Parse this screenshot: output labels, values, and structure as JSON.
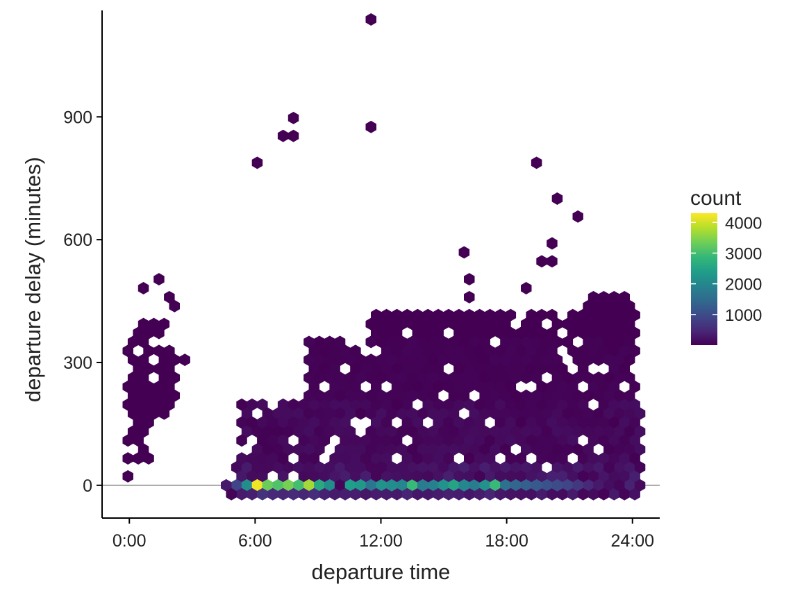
{
  "chart_data": {
    "type": "hexbin",
    "xlabel": "departure time",
    "ylabel": "departure delay (minutes)",
    "xlim": [
      -1.3,
      25.3
    ],
    "ylim": [
      -80,
      1160
    ],
    "x_ticks": [
      {
        "value": 0,
        "label": "0:00"
      },
      {
        "value": 6,
        "label": "6:00"
      },
      {
        "value": 12,
        "label": "12:00"
      },
      {
        "value": 18,
        "label": "18:00"
      },
      {
        "value": 24,
        "label": "24:00"
      }
    ],
    "y_ticks": [
      {
        "value": 0,
        "label": "0"
      },
      {
        "value": 300,
        "label": "300"
      },
      {
        "value": 600,
        "label": "600"
      },
      {
        "value": 900,
        "label": "900"
      }
    ],
    "reference_line": {
      "y": 0,
      "color": "#a6a6a6"
    },
    "legend": {
      "title": "count",
      "position": "right",
      "range": [
        1,
        4300
      ],
      "ticks": [
        {
          "value": 1000,
          "label": "1000"
        },
        {
          "value": 2000,
          "label": "2000"
        },
        {
          "value": 3000,
          "label": "3000"
        },
        {
          "value": 4000,
          "label": "4000"
        }
      ]
    },
    "colormap": [
      "#440154",
      "#482878",
      "#3e4989",
      "#31688e",
      "#26828e",
      "#1f9e89",
      "#35b779",
      "#6ece58",
      "#b5de2b",
      "#fde725"
    ],
    "outliers": [
      {
        "x": 11.3,
        "y": 1128
      },
      {
        "x": 11.55,
        "y": 868
      },
      {
        "x": 7.9,
        "y": 890
      },
      {
        "x": 7.2,
        "y": 848
      },
      {
        "x": 7.65,
        "y": 848
      },
      {
        "x": 6.3,
        "y": 790
      },
      {
        "x": 19.3,
        "y": 790
      },
      {
        "x": 20.3,
        "y": 710
      },
      {
        "x": 21.3,
        "y": 650
      },
      {
        "x": 16.05,
        "y": 570
      },
      {
        "x": 20.1,
        "y": 590
      },
      {
        "x": 19.8,
        "y": 550
      },
      {
        "x": 20.15,
        "y": 550
      },
      {
        "x": 16.3,
        "y": 510
      },
      {
        "x": 16.3,
        "y": 470
      },
      {
        "x": 19.1,
        "y": 490
      },
      {
        "x": 1.45,
        "y": 510
      },
      {
        "x": 0.7,
        "y": 490
      },
      {
        "x": 1.75,
        "y": 450
      },
      {
        "x": 1.95,
        "y": 430
      },
      {
        "x": 0.1,
        "y": 12
      }
    ],
    "regions": [
      {
        "x0": -0.2,
        "x1": 1.1,
        "y0": 70,
        "y1": 350,
        "counts": [
          1,
          3
        ]
      },
      {
        "x0": 0.3,
        "x1": 1.8,
        "y0": 380,
        "y1": 400,
        "counts": [
          1,
          2
        ]
      },
      {
        "x0": 1.0,
        "x1": 2.2,
        "y0": 160,
        "y1": 330,
        "counts": [
          1,
          2
        ]
      },
      {
        "x0": 1.7,
        "x1": 2.8,
        "y0": 280,
        "y1": 310,
        "counts": [
          1,
          2
        ]
      },
      {
        "x0": 5.0,
        "x1": 24.3,
        "y0": -30,
        "y1": 40,
        "counts": [
          30,
          400
        ]
      },
      {
        "x0": 5.3,
        "x1": 24.4,
        "y0": 0,
        "y1": 200,
        "counts": [
          5,
          160
        ]
      },
      {
        "x0": 8.5,
        "x1": 24.3,
        "y0": 200,
        "y1": 340,
        "counts": [
          2,
          40
        ]
      },
      {
        "x0": 11.5,
        "x1": 24.1,
        "y0": 340,
        "y1": 410,
        "counts": [
          1,
          6
        ]
      },
      {
        "x0": 12.5,
        "x1": 13.3,
        "y0": 410,
        "y1": 420,
        "counts": [
          1,
          2
        ]
      },
      {
        "x0": 21.5,
        "x1": 24.0,
        "y0": 410,
        "y1": 450,
        "counts": [
          1,
          3
        ]
      }
    ],
    "zero_line_counts": [
      {
        "x": 4.8,
        "count": 300
      },
      {
        "x": 5.3,
        "count": 900
      },
      {
        "x": 5.8,
        "count": 2100
      },
      {
        "x": 6.3,
        "count": 4200
      },
      {
        "x": 6.8,
        "count": 3300
      },
      {
        "x": 7.3,
        "count": 3100
      },
      {
        "x": 7.8,
        "count": 3400
      },
      {
        "x": 8.3,
        "count": 3000
      },
      {
        "x": 8.8,
        "count": 3700
      },
      {
        "x": 9.3,
        "count": 2600
      },
      {
        "x": 9.8,
        "count": 2100
      },
      {
        "x": 10.3,
        "count": 2400
      },
      {
        "x": 10.8,
        "count": 2300
      },
      {
        "x": 11.3,
        "count": 1700
      },
      {
        "x": 11.8,
        "count": 2200
      },
      {
        "x": 12.3,
        "count": 2100
      },
      {
        "x": 12.8,
        "count": 2000
      },
      {
        "x": 13.3,
        "count": 2900
      },
      {
        "x": 13.8,
        "count": 1800
      },
      {
        "x": 14.3,
        "count": 1900
      },
      {
        "x": 14.8,
        "count": 2200
      },
      {
        "x": 15.3,
        "count": 2500
      },
      {
        "x": 15.8,
        "count": 2000
      },
      {
        "x": 16.3,
        "count": 1800
      },
      {
        "x": 16.8,
        "count": 2200
      },
      {
        "x": 17.3,
        "count": 2900
      },
      {
        "x": 17.8,
        "count": 1600
      },
      {
        "x": 18.3,
        "count": 1400
      },
      {
        "x": 18.8,
        "count": 1300
      },
      {
        "x": 19.3,
        "count": 1200
      },
      {
        "x": 19.8,
        "count": 1100
      },
      {
        "x": 20.3,
        "count": 1000
      },
      {
        "x": 20.8,
        "count": 900
      },
      {
        "x": 21.3,
        "count": 700
      },
      {
        "x": 21.8,
        "count": 500
      },
      {
        "x": 22.3,
        "count": 300
      },
      {
        "x": 22.8,
        "count": 150
      },
      {
        "x": 23.3,
        "count": 60
      }
    ]
  }
}
